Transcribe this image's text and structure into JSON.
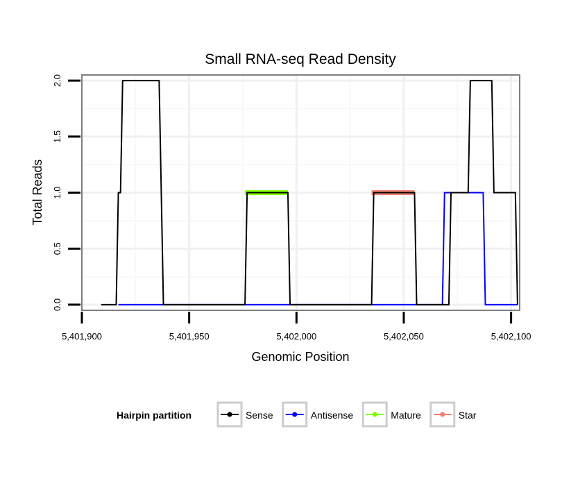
{
  "chart_data": {
    "type": "line",
    "title": "Small RNA-seq Read Density",
    "xlabel": "Genomic Position",
    "ylabel": "Total Reads",
    "xlim": [
      5401900,
      5402104
    ],
    "ylim": [
      -0.05,
      2.05
    ],
    "x_ticks": [
      5401900,
      5401950,
      5402000,
      5402050,
      5402100
    ],
    "x_tick_labels": [
      "5,401,900",
      "5,401,950",
      "5,402,000",
      "5,402,050",
      "5,402,100"
    ],
    "y_ticks": [
      0,
      0.5,
      1,
      1.5,
      2
    ],
    "y_tick_labels": [
      "0.0",
      "0.5",
      "1.0",
      "1.5",
      "2.0"
    ],
    "grid": true,
    "legend": {
      "title": "Hairpin partition",
      "position": "bottom"
    },
    "series": [
      {
        "name": "Sense",
        "color": "#000000",
        "x": [
          5401909,
          5401916,
          5401917,
          5401918,
          5401919,
          5401936,
          5401938,
          5401976,
          5401977,
          5401996,
          5401997,
          5402035,
          5402036,
          5402055,
          5402056,
          5402071,
          5402072,
          5402080,
          5402081,
          5402091,
          5402092,
          5402102,
          5402103
        ],
        "y": [
          0,
          0,
          1,
          1,
          2,
          2,
          0,
          0,
          1,
          1,
          0,
          0,
          1,
          1,
          0,
          0,
          1,
          1,
          2,
          2,
          1,
          1,
          0
        ]
      },
      {
        "name": "Antisense",
        "color": "#0000ff",
        "x": [
          5401917,
          5402068,
          5402069,
          5402087,
          5402088,
          5402103
        ],
        "y": [
          0,
          0,
          1,
          1,
          0,
          0
        ]
      },
      {
        "name": "Mature",
        "color": "#80ff00",
        "x": [
          5401976,
          5401996
        ],
        "y": [
          1,
          1
        ]
      },
      {
        "name": "Star",
        "color": "#f08070",
        "x": [
          5402035,
          5402055
        ],
        "y": [
          1,
          1
        ]
      }
    ]
  }
}
